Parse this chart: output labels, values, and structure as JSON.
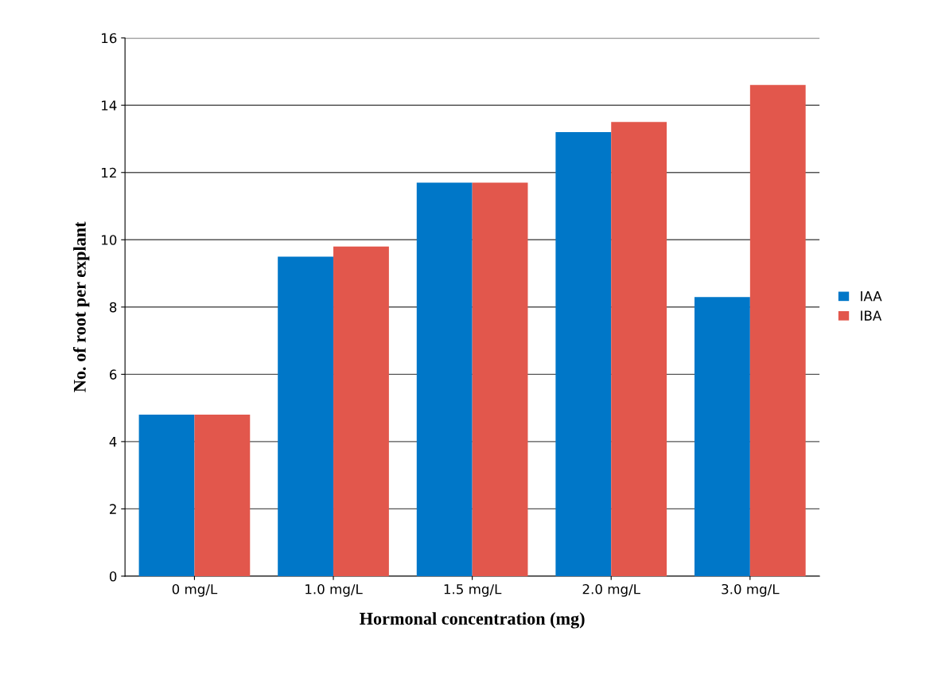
{
  "chart_data": {
    "type": "bar",
    "xlabel": "Hormonal concentration (mg)",
    "ylabel": "No. of root per explant",
    "categories": [
      "0 mg/L",
      "1.0 mg/L",
      "1.5 mg/L",
      "2.0 mg/L",
      "3.0 mg/L"
    ],
    "series": [
      {
        "name": "IAA",
        "color": "#0077c8",
        "values": [
          4.8,
          9.5,
          11.7,
          13.2,
          8.3
        ]
      },
      {
        "name": "IBA",
        "color": "#e2574c",
        "values": [
          4.8,
          9.8,
          11.7,
          13.5,
          14.6
        ]
      }
    ],
    "ylim": [
      0,
      16
    ],
    "yticks": [
      0,
      2,
      4,
      6,
      8,
      10,
      12,
      14,
      16
    ],
    "grid": "y",
    "legend": "right"
  }
}
